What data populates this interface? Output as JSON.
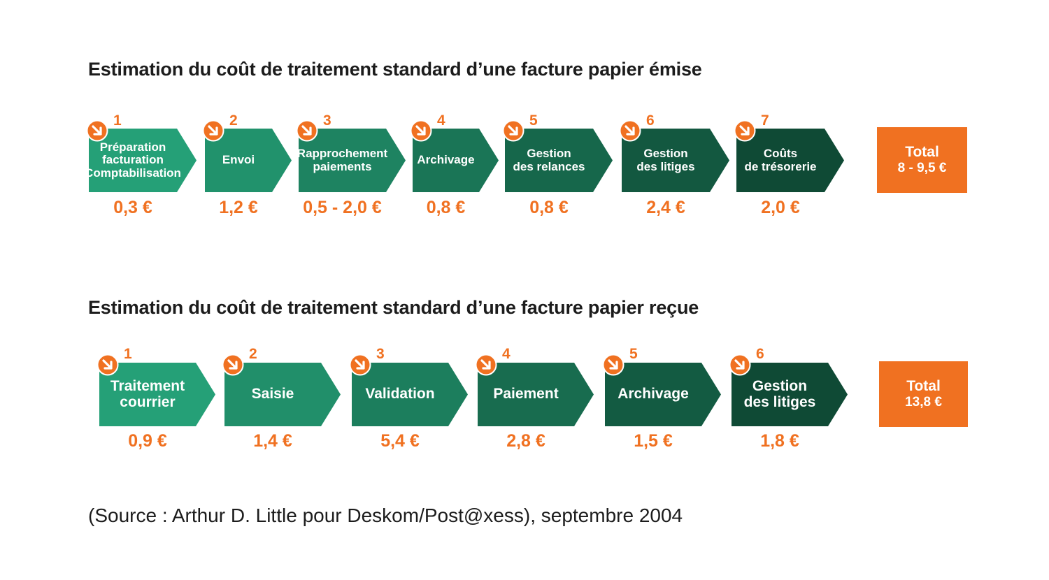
{
  "colors": {
    "accent": "#f07121",
    "gradient_start": "#25a077",
    "gradient_end": "#0f4a35"
  },
  "icons": {
    "step_badge": "arrow-down-right-icon"
  },
  "diagrams": [
    {
      "title": "Estimation du coût de traitement standard d’une facture papier émise",
      "steps": [
        {
          "num": "1",
          "label": "Préparation\nfacturation\nComptabilisation",
          "cost": "0,3 €"
        },
        {
          "num": "2",
          "label": "Envoi",
          "cost": "1,2 €"
        },
        {
          "num": "3",
          "label": "Rapprochement\npaiements",
          "cost": "0,5 - 2,0 €"
        },
        {
          "num": "4",
          "label": "Archivage",
          "cost": "0,8 €"
        },
        {
          "num": "5",
          "label": "Gestion\ndes relances",
          "cost": "0,8 €"
        },
        {
          "num": "6",
          "label": "Gestion\ndes litiges",
          "cost": "2,4 €"
        },
        {
          "num": "7",
          "label": "Coûts\nde trésorerie",
          "cost": "2,0 €"
        }
      ],
      "total": {
        "label": "Total",
        "value": "8 - 9,5 €"
      }
    },
    {
      "title": "Estimation du coût de traitement standard d’une facture papier reçue",
      "steps": [
        {
          "num": "1",
          "label": "Traitement\ncourrier",
          "cost": "0,9 €"
        },
        {
          "num": "2",
          "label": "Saisie",
          "cost": "1,4 €"
        },
        {
          "num": "3",
          "label": "Validation",
          "cost": "5,4 €"
        },
        {
          "num": "4",
          "label": "Paiement",
          "cost": "2,8 €"
        },
        {
          "num": "5",
          "label": "Archivage",
          "cost": "1,5 €"
        },
        {
          "num": "6",
          "label": "Gestion\ndes litiges",
          "cost": "1,8 €"
        }
      ],
      "total": {
        "label": "Total",
        "value": "13,8 €"
      }
    }
  ],
  "source": "(Source : Arthur D. Little pour Deskom/Post@xess), septembre 2004"
}
